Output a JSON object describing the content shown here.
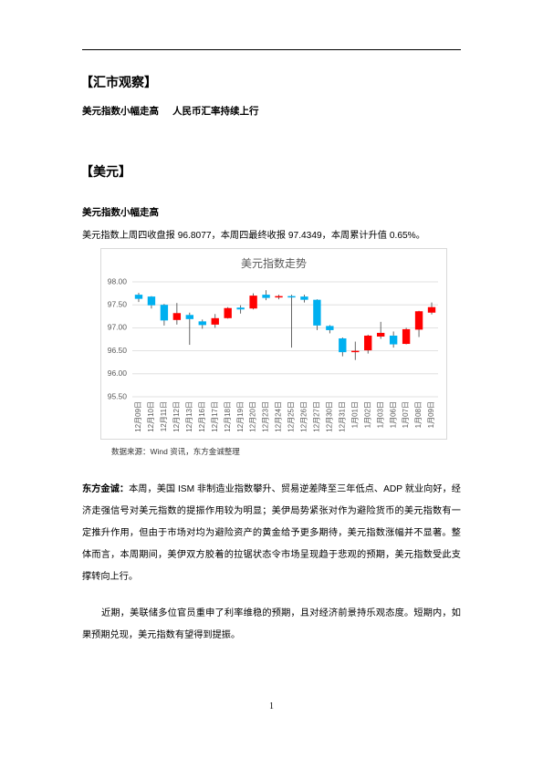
{
  "section1": {
    "title": "【汇市观察】",
    "headlines": [
      "美元指数小幅走高",
      "人民币汇率持续上行"
    ]
  },
  "section2": {
    "title": "【美元】",
    "subtitle": "美元指数小幅走高",
    "intro": "美元指数上周四收盘报 96.8077，本周四最终收报 97.4349，本周累计升值 0.65%。",
    "source": "数据来源：Wind 资讯，东方金诚整理",
    "comment_lead": "东方金诚：",
    "comment": "本周，美国 ISM 非制造业指数攀升、贸易逆差降至三年低点、ADP 就业向好，经济走强信号对美元指数的提振作用较为明显；美伊局势紧张对作为避险货币的美元指数有一定推升作用，但由于市场对均为避险资产的黄金给予更多期待，美元指数涨幅并不显著。整体而言，本周期间，美伊双方胶着的拉锯状态令市场呈现趋于悲观的预期，美元指数受此支撑转向上行。",
    "outlook": "近期，美联储多位官员重申了利率维稳的预期，且对经济前景持乐观态度。短期内，如果预期兑现，美元指数有望得到提振。"
  },
  "page_number": "1",
  "chart_data": {
    "type": "candlestick",
    "title": "美元指数走势",
    "categories": [
      "12月09日",
      "12月10日",
      "12月11日",
      "12月12日",
      "12月13日",
      "12月16日",
      "12月17日",
      "12月18日",
      "12月19日",
      "12月20日",
      "12月23日",
      "12月24日",
      "12月25日",
      "12月26日",
      "12月27日",
      "12月30日",
      "12月31日",
      "1月01日",
      "1月02日",
      "1月03日",
      "1月06日",
      "1月07日",
      "1月08日",
      "1月09日"
    ],
    "open": [
      97.72,
      97.68,
      97.5,
      97.17,
      97.28,
      97.14,
      97.07,
      97.21,
      97.44,
      97.42,
      97.72,
      97.66,
      97.69,
      97.68,
      97.61,
      97.04,
      96.77,
      96.48,
      96.51,
      96.81,
      96.83,
      96.65,
      96.96,
      97.33
    ],
    "high": [
      97.76,
      97.69,
      97.52,
      97.54,
      97.33,
      97.18,
      97.3,
      97.45,
      97.49,
      97.75,
      97.82,
      97.72,
      97.72,
      97.72,
      97.62,
      97.06,
      96.79,
      96.7,
      96.85,
      97.13,
      96.92,
      97.0,
      97.37,
      97.55
    ],
    "low": [
      97.56,
      97.42,
      97.05,
      97.07,
      96.63,
      96.98,
      97.0,
      97.2,
      97.31,
      97.4,
      97.6,
      97.62,
      96.57,
      97.55,
      96.95,
      96.88,
      96.38,
      96.3,
      96.44,
      96.76,
      96.57,
      96.64,
      96.8,
      97.29
    ],
    "close": [
      97.63,
      97.49,
      97.16,
      97.32,
      97.19,
      97.06,
      97.21,
      97.43,
      97.4,
      97.7,
      97.65,
      97.69,
      97.66,
      97.61,
      97.05,
      96.95,
      96.47,
      96.5,
      96.83,
      96.89,
      96.64,
      96.97,
      97.36,
      97.45
    ],
    "up_color": "#ff0000",
    "down_color": "#00b0f0",
    "ylim": [
      95.5,
      98
    ],
    "yticks": [
      {
        "value": 95.5,
        "label": "95.50"
      },
      {
        "value": 96,
        "label": "96.00"
      },
      {
        "value": 96.5,
        "label": "96.50"
      },
      {
        "value": 97,
        "label": "97.00"
      },
      {
        "value": 97.5,
        "label": "97.50"
      },
      {
        "value": 98,
        "label": "98.00"
      }
    ],
    "grid": true
  }
}
